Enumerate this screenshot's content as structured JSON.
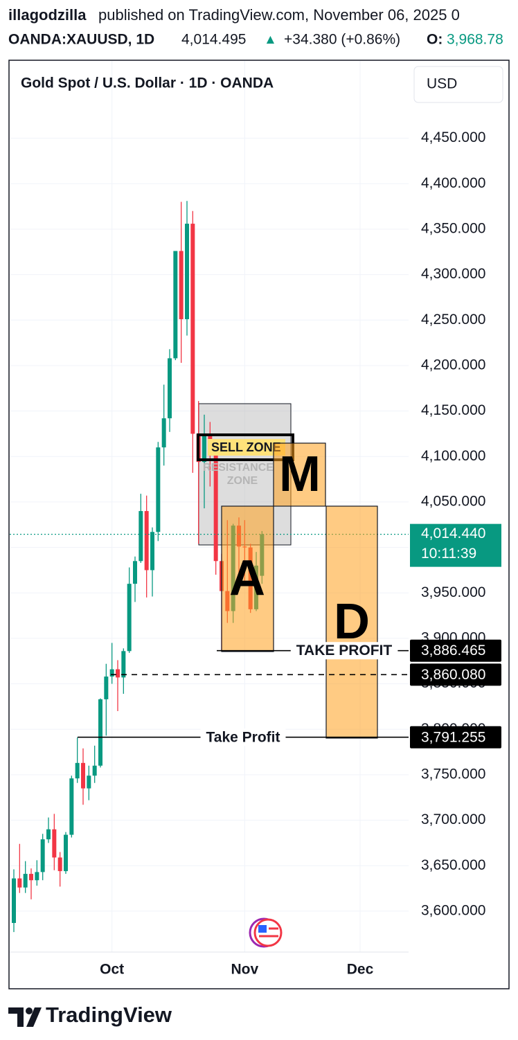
{
  "header": {
    "publisher": "illagodzilla",
    "published_text": "published on TradingView.com, November 06, 2025 0",
    "symbol": "OANDA:XAUUSD, 1D",
    "price": "4,014.495",
    "arrow": "▲",
    "change": "+34.380 (+0.86%)",
    "open_label": "O:",
    "open_value": "3,968.78"
  },
  "chart_data": {
    "type": "candlestick",
    "title": "Gold Spot / U.S. Dollar · 1D · OANDA",
    "currency": "USD",
    "up_color": "#089981",
    "down_color": "#f23645",
    "grid": true,
    "categories": [
      null,
      null,
      null,
      null,
      null,
      null,
      null,
      null,
      null,
      null,
      null,
      null,
      null,
      null,
      null,
      null,
      null,
      "Oct",
      null,
      null,
      null,
      null,
      null,
      null,
      null,
      null,
      null,
      null,
      null,
      null,
      null,
      null,
      null,
      null,
      null,
      null,
      null,
      null,
      null,
      null,
      "Nov",
      null,
      null,
      null,
      null,
      null,
      null,
      null,
      null,
      null,
      null,
      null,
      null,
      null,
      null,
      null,
      null,
      null,
      null,
      null,
      "Dec"
    ],
    "open": [
      3587,
      3636,
      3626,
      3641,
      3634,
      3643,
      3679,
      3690,
      3659,
      3644,
      3684,
      3746,
      3763,
      3735,
      3749,
      3760,
      3833,
      3858,
      3866,
      3857,
      3886,
      3960,
      3985,
      4040,
      3975,
      4017,
      4110,
      4142,
      4208,
      4326,
      4251,
      4356,
      4125,
      4094,
      4125,
      4112,
      3985,
      3952,
      3930,
      4024,
      4001,
      4000,
      3932,
      3968.78,
      null,
      null,
      null,
      null,
      null,
      null,
      null,
      null,
      null,
      null,
      null,
      null,
      null,
      null,
      null,
      null,
      null
    ],
    "high": [
      3646,
      3674,
      3655,
      3647,
      3656,
      3685,
      3703,
      3707,
      3665,
      3687,
      3749,
      3791,
      3779,
      3760,
      3782,
      3834,
      3872,
      3895,
      3876,
      3889,
      3978,
      3990,
      4059,
      4057,
      4022,
      4116,
      4179,
      4218,
      4326,
      4380,
      4381,
      4370,
      4161,
      4146,
      4138,
      4116,
      3993,
      4030,
      4026,
      4033,
      4030,
      4004,
      3995,
      4018,
      null,
      null,
      null,
      null,
      null,
      null,
      null,
      null,
      null,
      null,
      null,
      null,
      null,
      null,
      null,
      null,
      null
    ],
    "low": [
      3577,
      3620,
      3620,
      3613,
      3628,
      3634,
      3675,
      3645,
      3627,
      3641,
      3681,
      3741,
      3717,
      3722,
      3741,
      3758,
      3793,
      3850,
      3820,
      3839,
      3884,
      3940,
      3983,
      3945,
      3946,
      4007,
      4090,
      4127,
      4206,
      4203,
      4233,
      4082,
      4004,
      4043,
      4067,
      3970,
      3886,
      3917,
      3917,
      3967,
      3962,
      3928,
      3930,
      3960,
      null,
      null,
      null,
      null,
      null,
      null,
      null,
      null,
      null,
      null,
      null,
      null,
      null,
      null,
      null,
      null,
      null
    ],
    "close": [
      3636,
      3626,
      3641,
      3634,
      3643,
      3679,
      3690,
      3659,
      3644,
      3684,
      3746,
      3763,
      3735,
      3749,
      3760,
      3833,
      3858,
      3866,
      3857,
      3886,
      3960,
      3985,
      4040,
      3975,
      4017,
      4110,
      4142,
      4208,
      4326,
      4251,
      4356,
      4125,
      4094,
      4125,
      4112,
      3985,
      3952,
      3930,
      4024,
      4001,
      4000,
      3932,
      3980,
      4014.44,
      null,
      null,
      null,
      null,
      null,
      null,
      null,
      null,
      null,
      null,
      null,
      null,
      null,
      null,
      null,
      null,
      null
    ],
    "ylim": [
      3555,
      4535
    ],
    "yticks": [
      {
        "value": 3600,
        "label": "3,600.000"
      },
      {
        "value": 3650,
        "label": "3,650.000"
      },
      {
        "value": 3700,
        "label": "3,700.000"
      },
      {
        "value": 3750,
        "label": "3,750.000"
      },
      {
        "value": 3800,
        "label": "3,800.000"
      },
      {
        "value": 3850,
        "label": "3,850.000"
      },
      {
        "value": 3900,
        "label": "3,900.000"
      },
      {
        "value": 3950,
        "label": "3,950.000"
      },
      {
        "value": 4000,
        "label": "4,000.000"
      },
      {
        "value": 4050,
        "label": "4,050.000"
      },
      {
        "value": 4100,
        "label": "4,100.000"
      },
      {
        "value": 4150,
        "label": "4,150.000"
      },
      {
        "value": 4200,
        "label": "4,200.000"
      },
      {
        "value": 4250,
        "label": "4,250.000"
      },
      {
        "value": 4300,
        "label": "4,300.000"
      },
      {
        "value": 4350,
        "label": "4,350.000"
      },
      {
        "value": 4400,
        "label": "4,400.000"
      },
      {
        "value": 4450,
        "label": "4,450.000"
      }
    ],
    "current_price": {
      "value": 4014.44,
      "label": "4,014.440",
      "countdown": "10:11:39"
    },
    "price_lines": [
      {
        "value": 3886.465,
        "label": "3,886.465",
        "text": "TAKE PROFIT"
      },
      {
        "value": 3860.08,
        "label": "3,860.080"
      },
      {
        "value": 3791.255,
        "label": "3,791.255",
        "text": "Take Profit"
      }
    ],
    "annotations": {
      "sell_zone": "SELL ZONE",
      "resistance": "RESISTANCE",
      "zone": "ZONE",
      "a": "A",
      "m": "M",
      "d": "D"
    }
  },
  "branding": "TradingView"
}
